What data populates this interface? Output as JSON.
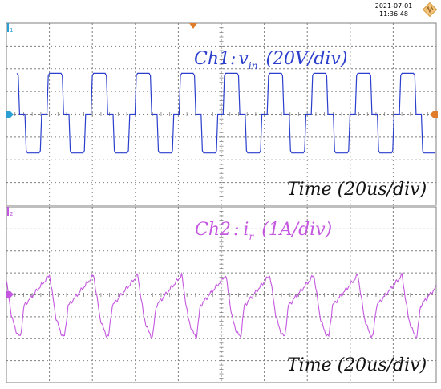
{
  "header": {
    "date": "2021-07-01",
    "time": "11:36:48",
    "logo_icon": "oscilloscope-brand-logo"
  },
  "colors": {
    "ch1": "#2b3fcc",
    "ch2": "#c457df",
    "grid": "#7f7f7f",
    "marker_ch1": "#2a9fd6",
    "marker_ch2": "#c457df",
    "trigger": "#e07d2a"
  },
  "channels": [
    {
      "label_main": "Ch1",
      "label_colon": ":",
      "symbol": "v",
      "subscript": "in",
      "scale": "(20V/div)",
      "time_scale": "Time (20us/div)",
      "marker": "1"
    },
    {
      "label_main": "Ch2",
      "label_colon": ":",
      "symbol": "i",
      "subscript": "r",
      "scale": "(1A/div)",
      "time_scale": "Time (20us/div)",
      "marker": "2"
    }
  ],
  "chart_data": [
    {
      "type": "line",
      "series": [
        {
          "name": "Ch1: v_in",
          "unit": "V",
          "period_us": 20.5,
          "high": 36,
          "low": -34,
          "zero": 0
        }
      ],
      "x_scale": "20us/div",
      "y_scale": "20V/div",
      "x_divisions": 10,
      "y_divisions": 8,
      "grid": true
    },
    {
      "type": "line",
      "series": [
        {
          "name": "Ch2: i_r",
          "unit": "A",
          "period_us": 20.5,
          "peak_positive": 0.9,
          "peak_negative": -1.9
        }
      ],
      "x_scale": "20us/div",
      "y_scale": "1A/div",
      "x_divisions": 10,
      "y_divisions": 8,
      "grid": true
    }
  ]
}
